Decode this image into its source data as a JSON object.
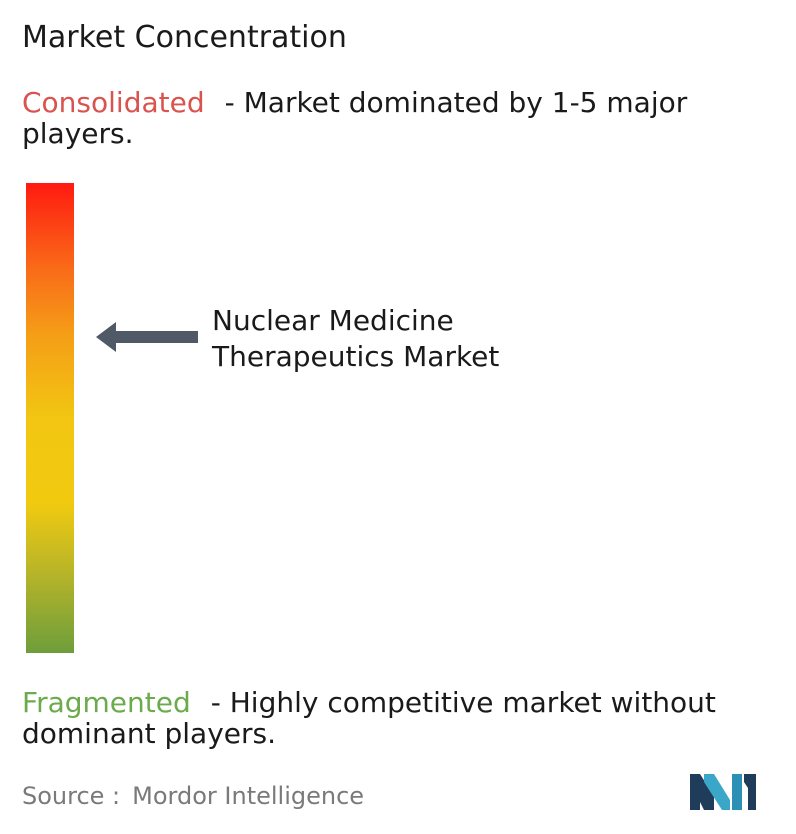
{
  "title": "Market Concentration",
  "consolidated": {
    "keyword": "Consolidated",
    "description": "- Market dominated by 1-5 major players."
  },
  "fragmented": {
    "keyword": "Fragmented",
    "description": "- Highly competitive market without dominant players."
  },
  "market": {
    "label_line1": "Nuclear Medicine",
    "label_line2": "Therapeutics Market"
  },
  "source": {
    "prefix": "Source :",
    "name": "Mordor Intelligence"
  },
  "colors": {
    "consolidated": "#d9534f",
    "fragmented": "#6cab4c",
    "arrow": "#4f5a66",
    "logo": "#3aa7c8"
  },
  "chart_data": {
    "type": "gauge",
    "scale": [
      "Consolidated",
      "Fragmented"
    ],
    "marker": {
      "label": "Nuclear Medicine Therapeutics Market",
      "position_from_consolidated": 0.33
    }
  }
}
